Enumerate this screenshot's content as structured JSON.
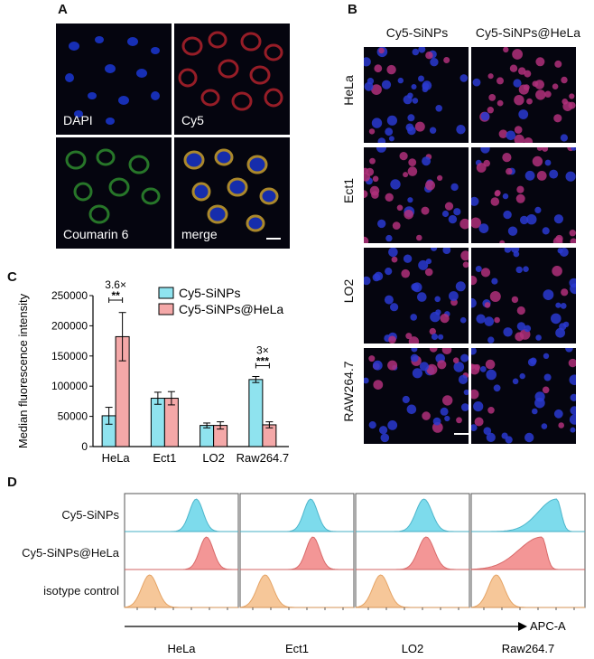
{
  "panels": {
    "a": "A",
    "b": "B",
    "c": "C",
    "d": "D"
  },
  "panel_a": {
    "labels": [
      "DAPI",
      "Cy5",
      "Coumarin 6",
      "merge"
    ]
  },
  "panel_b": {
    "columns": [
      "Cy5-SiNPs",
      "Cy5-SiNPs@HeLa"
    ],
    "rows": [
      "HeLa",
      "Ect1",
      "LO2",
      "RAW264.7"
    ]
  },
  "chart_data": {
    "type": "bar",
    "categories": [
      "HeLa",
      "Ect1",
      "LO2",
      "Raw264.7"
    ],
    "series": [
      {
        "name": "Cy5-SiNPs",
        "values": [
          51000,
          80000,
          35000,
          111000
        ],
        "errors": [
          14000,
          10000,
          4000,
          5000
        ],
        "color": "#8fe3ef"
      },
      {
        "name": "Cy5-SiNPs@HeLa",
        "values": [
          182000,
          80000,
          35000,
          36000
        ],
        "errors": [
          40000,
          11000,
          6000,
          5000
        ],
        "color": "#f4a8a8"
      }
    ],
    "ylabel": "Median fluorescence intensity",
    "ylim": [
      0,
      250000
    ],
    "yticks": [
      "0",
      "50000",
      "100000",
      "150000",
      "200000",
      "250000"
    ],
    "annotations": [
      {
        "category": "HeLa",
        "fold": "3.6×",
        "stars": "**"
      },
      {
        "category": "Raw264.7",
        "fold": "3×",
        "stars": "***"
      }
    ],
    "legend_position": "top-right"
  },
  "panel_d": {
    "row_labels": [
      "Cy5-SiNPs",
      "Cy5-SiNPs@HeLa",
      "isotype control"
    ],
    "cell_types": [
      "HeLa",
      "Ect1",
      "LO2",
      "Raw264.7"
    ],
    "axis_label": "APC-A",
    "colors": {
      "cy5": "#6fd8ea",
      "hela": "#f28b8b",
      "iso": "#f6c28e"
    }
  }
}
